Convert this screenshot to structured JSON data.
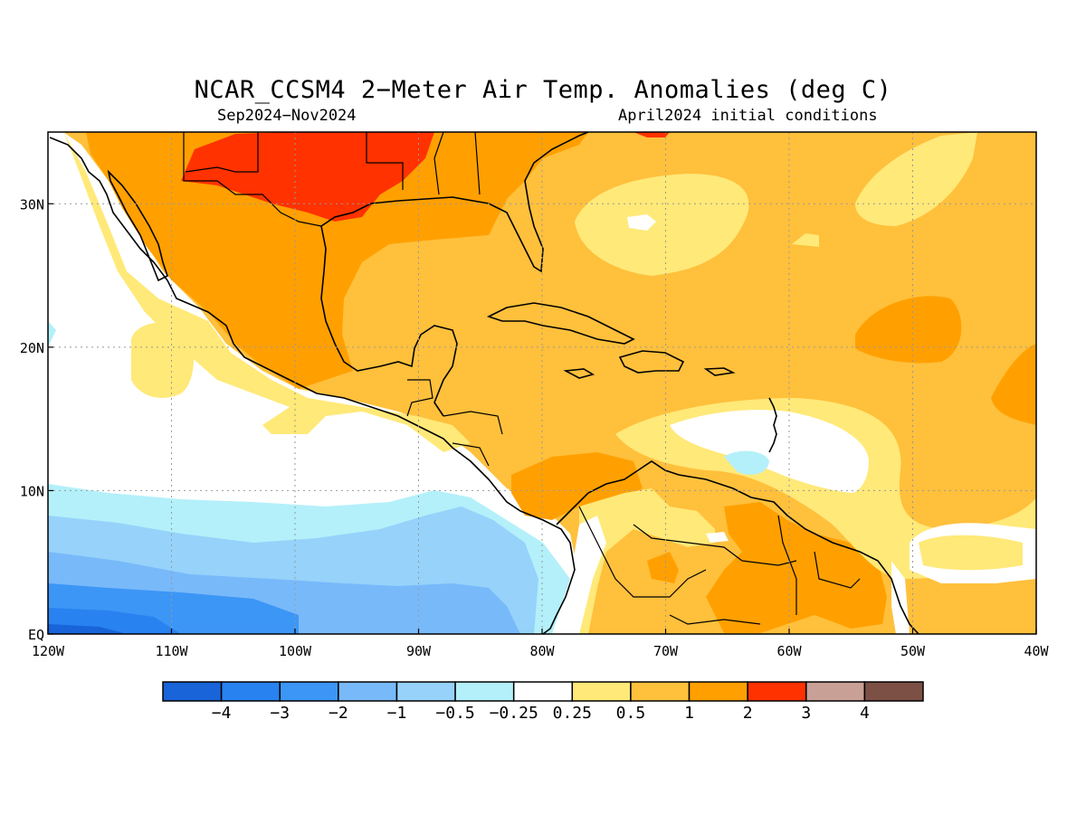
{
  "title": "NCAR_CCSM4 2−Meter Air Temp. Anomalies (deg C)",
  "subtitle_left": "Sep2024−Nov2024",
  "subtitle_right": "April2024 initial conditions",
  "map": {
    "lon_range": [
      -120,
      -40
    ],
    "lat_range": [
      0,
      35
    ],
    "x_ticks": [
      {
        "lon": -120,
        "label": "120W"
      },
      {
        "lon": -110,
        "label": "110W"
      },
      {
        "lon": -100,
        "label": "100W"
      },
      {
        "lon": -90,
        "label": "90W"
      },
      {
        "lon": -80,
        "label": "80W"
      },
      {
        "lon": -70,
        "label": "70W"
      },
      {
        "lon": -60,
        "label": "60W"
      },
      {
        "lon": -50,
        "label": "50W"
      },
      {
        "lon": -40,
        "label": "40W"
      }
    ],
    "y_ticks": [
      {
        "lat": 0,
        "label": "EQ"
      },
      {
        "lat": 10,
        "label": "10N"
      },
      {
        "lat": 20,
        "label": "20N"
      },
      {
        "lat": 30,
        "label": "30N"
      }
    ],
    "gridlines": true
  },
  "colorbar": {
    "colors": [
      "#1864d8",
      "#2882f0",
      "#3c96f5",
      "#78b9fa",
      "#96d2fa",
      "#b4f0fa",
      "#ffffff",
      "#ffe978",
      "#ffc03c",
      "#ffa000",
      "#ff3200",
      "#c8a096",
      "#7d5046"
    ],
    "labels": [
      "−4",
      "−3",
      "−2",
      "−1",
      "−0.5",
      "−0.25",
      "0.25",
      "0.5",
      "1",
      "2",
      "3",
      "4"
    ]
  }
}
